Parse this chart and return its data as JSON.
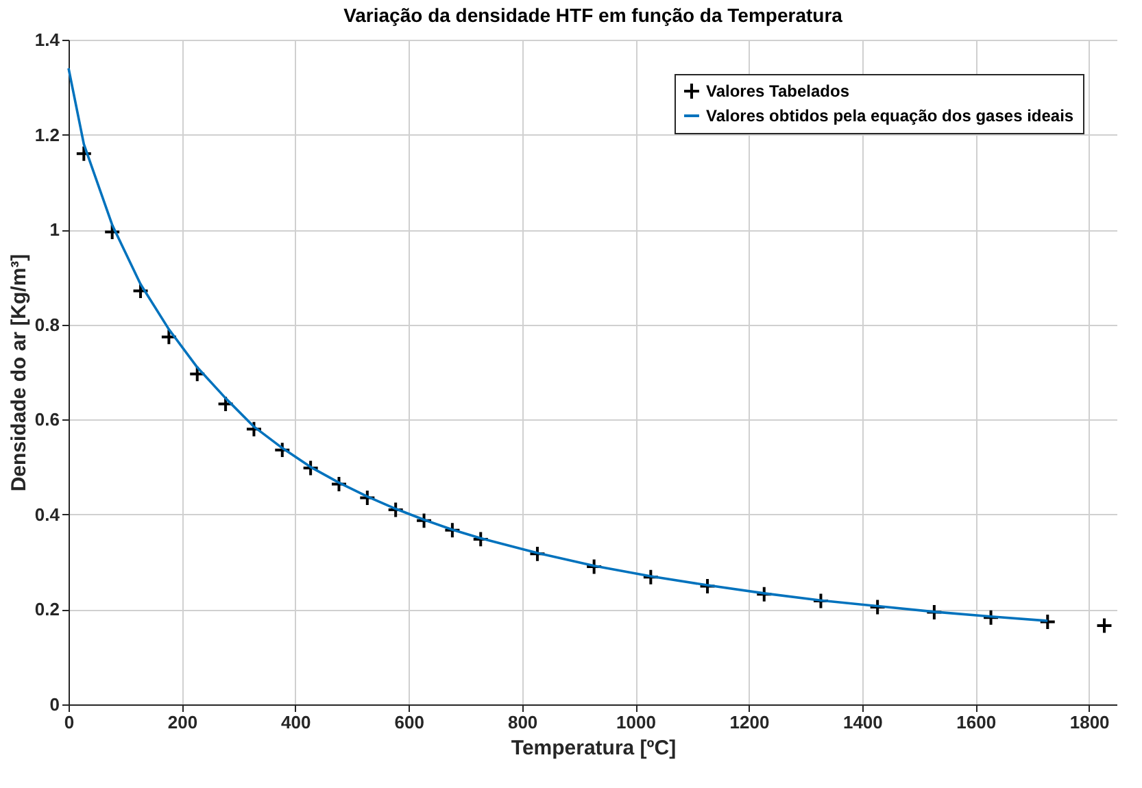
{
  "chart_data": {
    "type": "scatter",
    "title": "Variação da densidade HTF em função da Temperatura",
    "xlabel": "Temperatura [ºC]",
    "ylabel": "Densidade do ar [Kg/m³]",
    "xlim": [
      0,
      1850
    ],
    "xticks": [
      0,
      200,
      400,
      600,
      800,
      1000,
      1200,
      1400,
      1600,
      1800
    ],
    "ylim": [
      0,
      1.4
    ],
    "yticks": [
      0,
      0.2,
      0.4,
      0.6,
      0.8,
      1,
      1.2,
      1.4
    ],
    "grid": true,
    "legend": "top right",
    "series": [
      {
        "name": "Valores Tabelados",
        "marker": "cross",
        "color": "#000000",
        "x": [
          27,
          77,
          127,
          177,
          227,
          277,
          327,
          377,
          427,
          477,
          527,
          577,
          627,
          677,
          727,
          827,
          927,
          1027,
          1127,
          1227,
          1327,
          1427,
          1527,
          1627,
          1727,
          1827
        ],
        "values": [
          1.16,
          0.995,
          0.871,
          0.774,
          0.696,
          0.633,
          0.58,
          0.536,
          0.498,
          0.464,
          0.435,
          0.41,
          0.387,
          0.367,
          0.348,
          0.317,
          0.29,
          0.268,
          0.249,
          0.232,
          0.218,
          0.205,
          0.194,
          0.183,
          0.174,
          0.166
        ]
      },
      {
        "name": "Valores obtidos pela equação dos gases ideais",
        "type": "line",
        "color": "#0072bd",
        "x": [
          0,
          27,
          77,
          127,
          177,
          227,
          277,
          327,
          377,
          427,
          477,
          527,
          577,
          627,
          677,
          727,
          827,
          927,
          1027,
          1127,
          1227,
          1327,
          1427,
          1527,
          1627,
          1727
        ],
        "values": [
          1.34,
          1.18,
          1.01,
          0.885,
          0.79,
          0.71,
          0.645,
          0.585,
          0.54,
          0.5,
          0.467,
          0.438,
          0.412,
          0.389,
          0.368,
          0.35,
          0.319,
          0.292,
          0.27,
          0.251,
          0.234,
          0.219,
          0.207,
          0.195,
          0.185,
          0.176
        ]
      }
    ]
  }
}
